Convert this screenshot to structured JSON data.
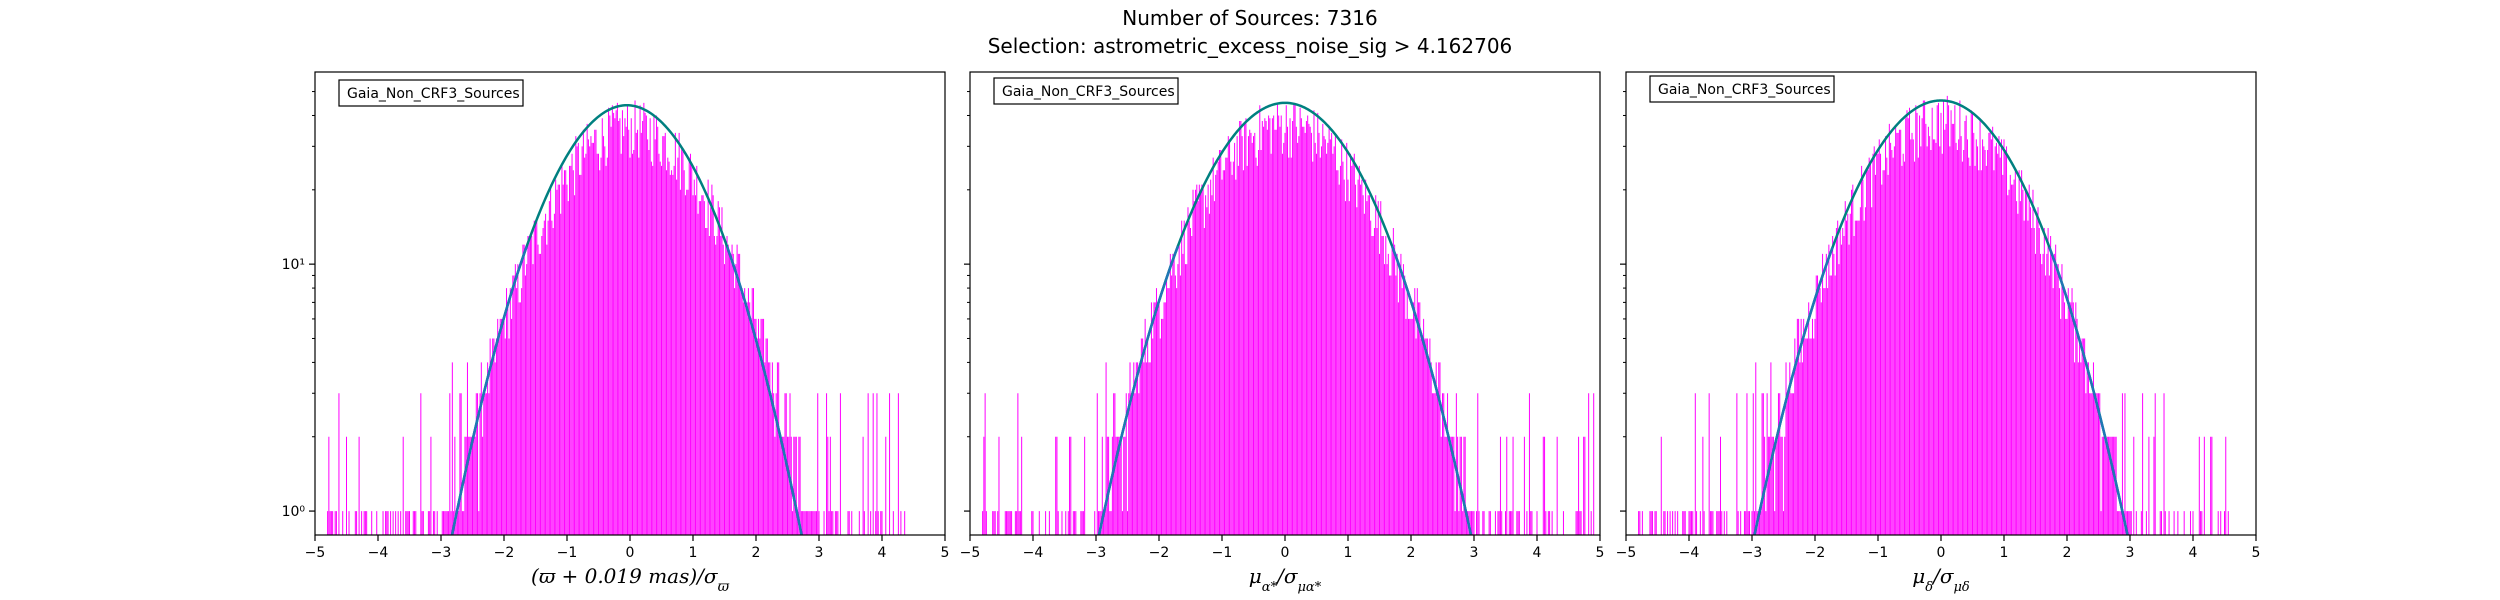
{
  "figure": {
    "title": "Number of Sources: 7316",
    "subtitle": "Selection: astrometric_excess_noise_sig > 4.162706"
  },
  "colors": {
    "histogram": "#ff00ff",
    "fit_curve": "#008080",
    "fit_curve_lower": "#1f77b4"
  },
  "chart_data": [
    {
      "type": "histogram",
      "legend": "Gaia_Non_CRF3_Sources",
      "xlabel": "(ϖ + 0.019 mas)/σϖ",
      "xlim": [
        -5,
        5
      ],
      "ylim": [
        0.8,
        60
      ],
      "yscale": "log",
      "xticks": [
        "−5",
        "−4",
        "−3",
        "−2",
        "−1",
        "0",
        "1",
        "2",
        "3",
        "4",
        "5"
      ],
      "yticks": [
        {
          "value": 1,
          "label": "10⁰"
        },
        {
          "value": 10,
          "label": "10¹"
        }
      ],
      "fit_curve": {
        "type": "gaussian",
        "peak": 44,
        "mean": -0.05,
        "sigma": 0.98
      },
      "hist": {
        "bin_width": 0.02,
        "range": [
          -4.8,
          4.5
        ],
        "peak": 36,
        "sigma": 1.05
      }
    },
    {
      "type": "histogram",
      "legend": "Gaia_Non_CRF3_Sources",
      "xlabel": "μα*/σμα*",
      "xlim": [
        -5,
        5
      ],
      "ylim": [
        0.8,
        60
      ],
      "yscale": "log",
      "xticks": [
        "−5",
        "−4",
        "−3",
        "−2",
        "−1",
        "0",
        "1",
        "2",
        "3",
        "4",
        "5"
      ],
      "yticks": [
        {
          "value": 1,
          "label": "10⁰"
        },
        {
          "value": 10,
          "label": "10¹"
        }
      ],
      "fit_curve": {
        "type": "gaussian",
        "peak": 45,
        "mean": 0.0,
        "sigma": 1.04
      },
      "hist": {
        "bin_width": 0.02,
        "range": [
          -4.8,
          4.9
        ],
        "peak": 37,
        "sigma": 1.1
      }
    },
    {
      "type": "histogram",
      "legend": "Gaia_Non_CRF3_Sources",
      "xlabel": "μδ/σμδ",
      "xlim": [
        -5,
        5
      ],
      "ylim": [
        0.8,
        60
      ],
      "yscale": "log",
      "xticks": [
        "−5",
        "−4",
        "−3",
        "−2",
        "−1",
        "0",
        "1",
        "2",
        "3",
        "4",
        "5"
      ],
      "yticks": [
        {
          "value": 1,
          "label": "10⁰"
        },
        {
          "value": 10,
          "label": "10¹"
        }
      ],
      "fit_curve": {
        "type": "gaussian",
        "peak": 46,
        "mean": 0.0,
        "sigma": 1.04
      },
      "hist": {
        "bin_width": 0.02,
        "range": [
          -4.8,
          4.6
        ],
        "peak": 38,
        "sigma": 1.1
      }
    }
  ]
}
